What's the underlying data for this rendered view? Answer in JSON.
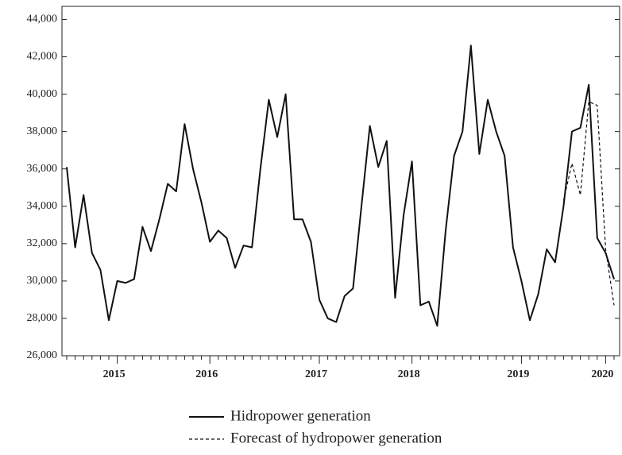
{
  "chart_data": {
    "type": "line",
    "categories": [
      null,
      null,
      null,
      null,
      null,
      null,
      "2015",
      null,
      null,
      null,
      null,
      null,
      null,
      null,
      null,
      null,
      null,
      "2016",
      null,
      null,
      null,
      null,
      null,
      null,
      null,
      null,
      null,
      null,
      null,
      null,
      "2017",
      null,
      null,
      null,
      null,
      null,
      null,
      null,
      null,
      null,
      null,
      "2018",
      null,
      null,
      null,
      null,
      null,
      null,
      null,
      null,
      null,
      null,
      null,
      null,
      "2019",
      null,
      null,
      null,
      null,
      null,
      null,
      null,
      null,
      null,
      "2020",
      null
    ],
    "series": [
      {
        "name": "Hidropower generation",
        "color": "#111111",
        "dash": false,
        "values": [
          36100,
          31800,
          34600,
          31500,
          30600,
          27900,
          30000,
          29900,
          30100,
          32900,
          31600,
          33300,
          35200,
          34800,
          38400,
          36000,
          34200,
          32100,
          32700,
          32300,
          30700,
          31900,
          31800,
          36000,
          39700,
          37700,
          40000,
          33300,
          33300,
          32100,
          29000,
          28000,
          27800,
          29200,
          29600,
          34000,
          38300,
          36100,
          37500,
          29100,
          33500,
          36400,
          28700,
          28900,
          27600,
          32700,
          36700,
          38000,
          42600,
          36800,
          39700,
          38000,
          36700,
          31800,
          30000,
          27900,
          29300,
          31700,
          31000,
          34000,
          38000,
          38200,
          40500,
          32300,
          31500,
          30100
        ]
      },
      {
        "name": "Forecast of hydropower generation",
        "color": "#111111",
        "dash": true,
        "values": [
          null,
          null,
          null,
          null,
          null,
          null,
          null,
          null,
          null,
          null,
          null,
          null,
          null,
          null,
          null,
          null,
          null,
          null,
          null,
          null,
          null,
          null,
          null,
          null,
          null,
          null,
          null,
          null,
          null,
          null,
          null,
          null,
          null,
          null,
          null,
          null,
          null,
          null,
          null,
          null,
          null,
          null,
          null,
          null,
          null,
          null,
          null,
          null,
          null,
          null,
          null,
          null,
          null,
          null,
          null,
          null,
          null,
          null,
          null,
          34300,
          36300,
          34600,
          39600,
          39400,
          31700,
          28700
        ]
      }
    ],
    "ylim": [
      26000,
      44700
    ],
    "yticks": [
      {
        "value": 26000,
        "label": "26,000"
      },
      {
        "value": 28000,
        "label": "28,000"
      },
      {
        "value": 30000,
        "label": "30,000"
      },
      {
        "value": 32000,
        "label": "32,000"
      },
      {
        "value": 34000,
        "label": "34,000"
      },
      {
        "value": 36000,
        "label": "36,000"
      },
      {
        "value": 38000,
        "label": "38,000"
      },
      {
        "value": 40000,
        "label": "40,000"
      },
      {
        "value": 42000,
        "label": "42,000"
      },
      {
        "value": 44000,
        "label": "44,000"
      }
    ],
    "grid": false,
    "legend": "bottom"
  }
}
